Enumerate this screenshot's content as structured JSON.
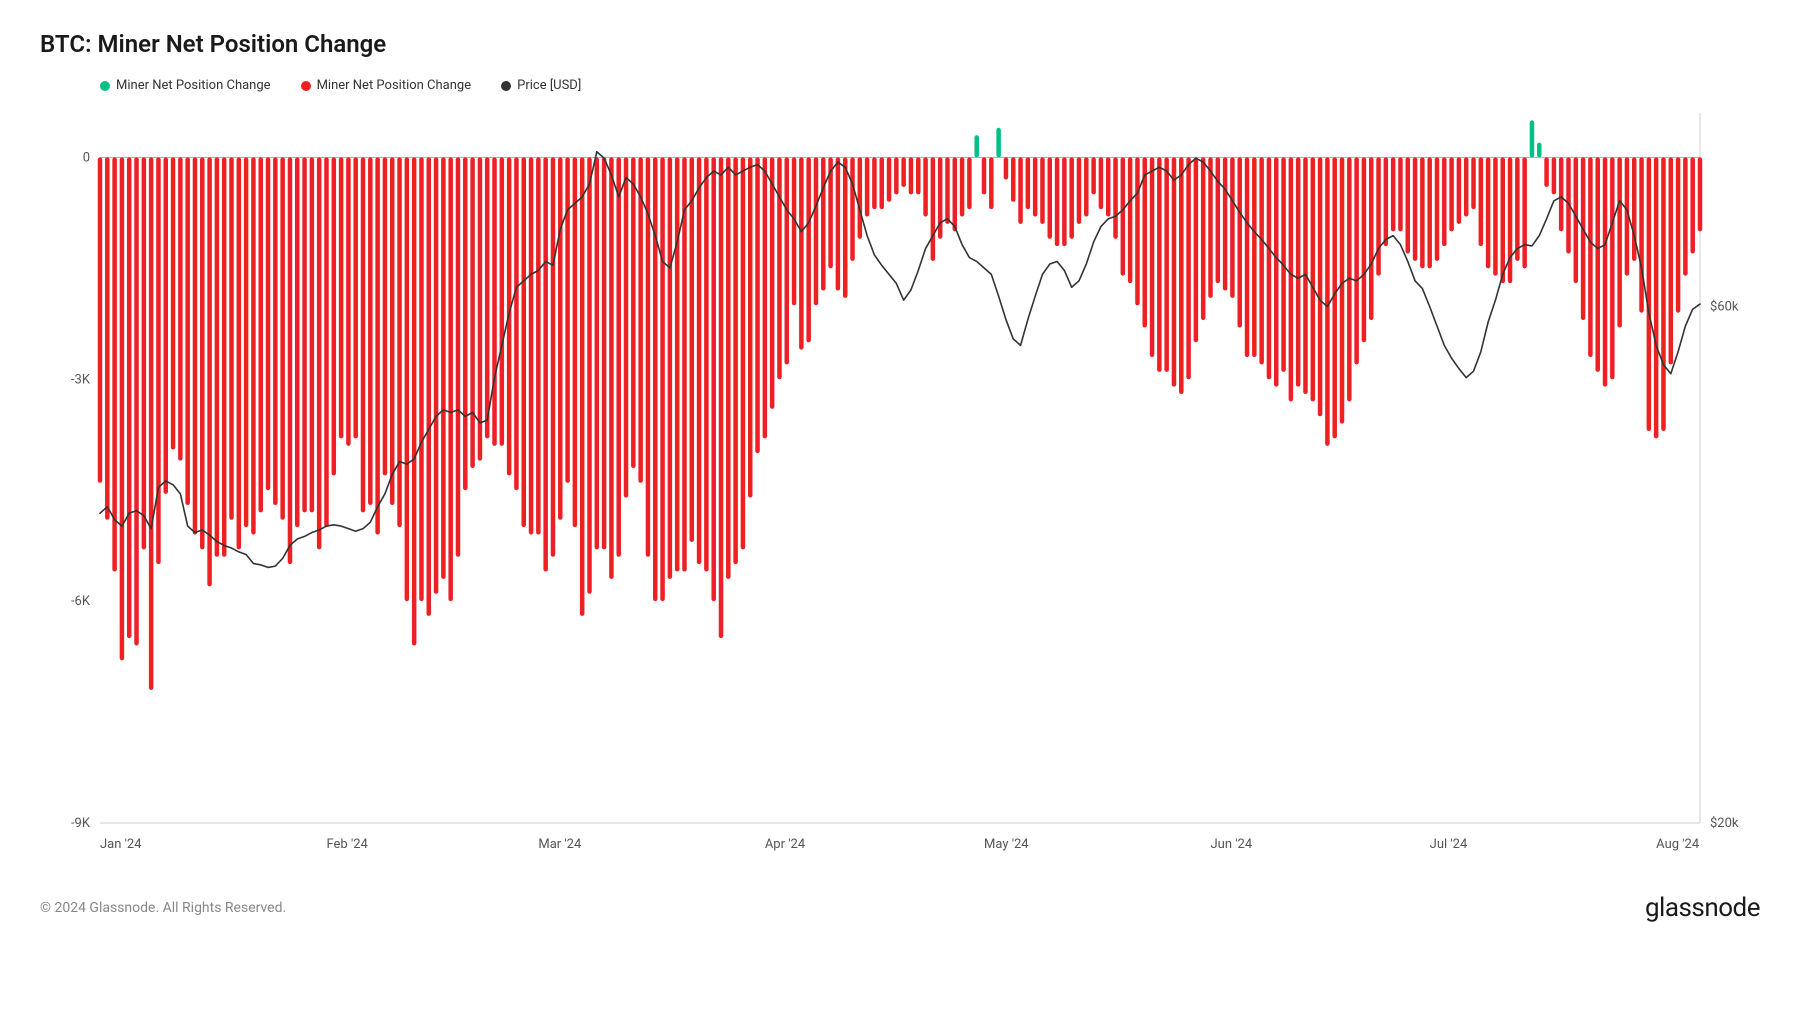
{
  "title": "BTC: Miner Net Position Change",
  "legend": [
    {
      "label": "Miner Net Position Change",
      "color": "#00c087"
    },
    {
      "label": "Miner Net Position Change",
      "color": "#ed2024"
    },
    {
      "label": "Price [USD]",
      "color": "#333333"
    }
  ],
  "chart": {
    "type": "bar-line-dual-axis",
    "left_axis": {
      "min": -9000,
      "max": 600,
      "ticks": [
        0,
        -3000,
        -6000,
        -9000
      ],
      "tick_labels": [
        "0",
        "-3K",
        "-6K",
        "-9K"
      ]
    },
    "right_axis": {
      "min": 20000,
      "max": 75000,
      "ticks": [
        60000,
        20000
      ],
      "tick_labels": [
        "$60k",
        "$20k"
      ]
    },
    "x_axis": {
      "tick_labels": [
        "Jan '24",
        "Feb '24",
        "Mar '24",
        "Apr '24",
        "May '24",
        "Jun '24",
        "Jul '24",
        "Aug '24"
      ],
      "tick_positions": [
        0,
        31,
        60,
        91,
        121,
        152,
        182,
        213
      ]
    },
    "bar_positive_color": "#00c087",
    "bar_negative_color": "#ed2024",
    "line_color": "#333333",
    "background_color": "#ffffff",
    "grid_color": "#e8e8e8",
    "bars": [
      -4400,
      -4900,
      -5600,
      -6800,
      -6500,
      -6600,
      -5300,
      -7200,
      -5500,
      -4550,
      -3950,
      -4100,
      -4700,
      -5100,
      -5300,
      -5800,
      -5400,
      -5400,
      -4900,
      -5300,
      -5000,
      -5100,
      -4800,
      -4500,
      -4700,
      -4900,
      -5500,
      -5000,
      -4800,
      -4800,
      -5300,
      -5000,
      -4300,
      -3800,
      -3900,
      -3800,
      -4800,
      -4700,
      -5100,
      -4300,
      -4700,
      -5000,
      -6000,
      -6600,
      -6000,
      -6200,
      -5900,
      -5700,
      -6000,
      -5400,
      -4500,
      -4200,
      -4100,
      -3800,
      -3900,
      -3900,
      -4300,
      -4500,
      -5000,
      -5100,
      -5100,
      -5600,
      -5400,
      -4900,
      -4400,
      -5000,
      -6200,
      -5900,
      -5300,
      -5300,
      -5700,
      -5400,
      -4600,
      -4200,
      -4400,
      -5400,
      -6000,
      -6000,
      -5700,
      -5600,
      -5600,
      -5200,
      -5500,
      -5600,
      -6000,
      -6500,
      -5700,
      -5500,
      -5300,
      -4600,
      -4000,
      -3800,
      -3400,
      -3000,
      -2800,
      -2000,
      -2600,
      -2500,
      -2000,
      -1800,
      -1500,
      -1800,
      -1900,
      -1400,
      -1100,
      -800,
      -700,
      -700,
      -600,
      -500,
      -400,
      -500,
      -500,
      -800,
      -1400,
      -1100,
      -900,
      -1000,
      -800,
      -700,
      300,
      -500,
      -700,
      400,
      -300,
      -600,
      -900,
      -700,
      -800,
      -900,
      -1100,
      -1200,
      -1200,
      -1100,
      -900,
      -800,
      -500,
      -700,
      -800,
      -1100,
      -1600,
      -1700,
      -2000,
      -2300,
      -2700,
      -2900,
      -2900,
      -3100,
      -3200,
      -3000,
      -2500,
      -2200,
      -1900,
      -1700,
      -1800,
      -1900,
      -2300,
      -2700,
      -2700,
      -2800,
      -3000,
      -3100,
      -2900,
      -3300,
      -3100,
      -3200,
      -3300,
      -3500,
      -3900,
      -3800,
      -3600,
      -3300,
      -2800,
      -2500,
      -2200,
      -1600,
      -1200,
      -1000,
      -1000,
      -1300,
      -1400,
      -1500,
      -1500,
      -1400,
      -1200,
      -1000,
      -900,
      -800,
      -700,
      -1200,
      -1500,
      -1600,
      -1700,
      -1700,
      -1400,
      -1500,
      500,
      200,
      -400,
      -500,
      -1000,
      -1300,
      -1700,
      -2200,
      -2700,
      -2900,
      -3100,
      -3000,
      -2300,
      -1600,
      -1400,
      -2100,
      -3700,
      -3800,
      -3700,
      -2800,
      -2100,
      -1600,
      -1300,
      -1000
    ],
    "price": [
      44000,
      44500,
      43500,
      43000,
      44000,
      44200,
      43800,
      42800,
      46000,
      46500,
      46200,
      45500,
      43000,
      42500,
      42700,
      42300,
      41800,
      41500,
      41300,
      41000,
      40800,
      40100,
      40000,
      39800,
      39900,
      40500,
      41500,
      42000,
      42200,
      42500,
      42700,
      43000,
      43100,
      43000,
      42800,
      42600,
      42800,
      43300,
      44500,
      45500,
      47000,
      48000,
      47800,
      48200,
      49500,
      50500,
      51500,
      52000,
      51800,
      52000,
      51500,
      51800,
      51000,
      51200,
      54500,
      57000,
      59500,
      61500,
      62000,
      62500,
      62800,
      63500,
      63200,
      66000,
      67500,
      68000,
      68500,
      69500,
      72000,
      71500,
      70200,
      68500,
      70000,
      69500,
      68500,
      67200,
      65500,
      63500,
      63000,
      65000,
      67500,
      68200,
      69200,
      70000,
      70500,
      70200,
      70800,
      70200,
      70500,
      70800,
      71000,
      70500,
      69500,
      68500,
      67500,
      66800,
      65800,
      66500,
      67800,
      69200,
      70500,
      71200,
      70800,
      69500,
      67500,
      65500,
      64000,
      63200,
      62500,
      61800,
      60500,
      61300,
      62800,
      64500,
      65500,
      66500,
      66800,
      66200,
      64800,
      63800,
      63500,
      63000,
      62500,
      60800,
      59000,
      57500,
      57000,
      59000,
      60800,
      62500,
      63300,
      63500,
      62800,
      61500,
      62000,
      63300,
      65000,
      66200,
      66800,
      67000,
      67500,
      68200,
      68800,
      70200,
      70500,
      70800,
      70500,
      69800,
      70200,
      71000,
      71500,
      71200,
      70500,
      69700,
      69100,
      68200,
      67300,
      66500,
      65800,
      65200,
      64500,
      63800,
      63200,
      62500,
      62200,
      62500,
      61500,
      60500,
      60000,
      61000,
      61800,
      62200,
      62000,
      62500,
      63300,
      64500,
      65200,
      65500,
      64800,
      63500,
      62000,
      61400,
      60000,
      58500,
      57000,
      56000,
      55200,
      54500,
      55000,
      56500,
      58800,
      60500,
      62500,
      63800,
      64500,
      64800,
      64700,
      65500,
      66800,
      68200,
      68500,
      68000,
      67000,
      66000,
      65000,
      64500,
      64800,
      66500,
      68200,
      67500,
      65500,
      63000,
      59500,
      57000,
      55500,
      54800,
      56500,
      58500,
      59800,
      60200
    ],
    "n_points": 220
  },
  "footer": {
    "copyright": "© 2024 Glassnode. All Rights Reserved.",
    "brand": "glassnode"
  }
}
